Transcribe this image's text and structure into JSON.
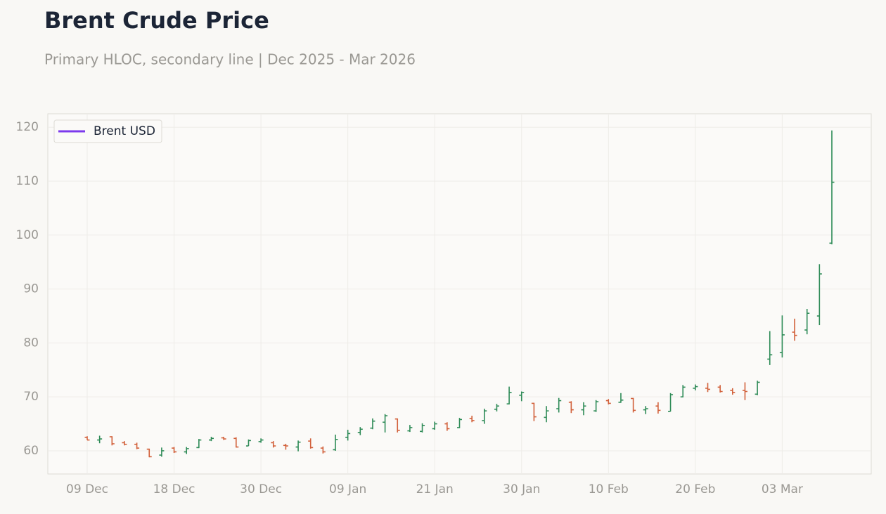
{
  "chart_data": {
    "type": "ohlc",
    "title": "Brent Crude Price",
    "subtitle": "Primary HLOC, secondary line | Dec 2025 - Mar 2026",
    "categories": [
      "09 Dec",
      null,
      null,
      null,
      null,
      null,
      null,
      "18 Dec",
      null,
      null,
      null,
      null,
      null,
      null,
      "30 Dec",
      null,
      null,
      null,
      null,
      null,
      null,
      "09 Jan",
      null,
      null,
      null,
      null,
      null,
      null,
      "21 Jan",
      null,
      null,
      null,
      null,
      null,
      null,
      "30 Jan",
      null,
      null,
      null,
      null,
      null,
      null,
      "10 Feb",
      null,
      null,
      null,
      null,
      null,
      null,
      "20 Feb",
      null,
      null,
      null,
      null,
      null,
      null,
      "03 Mar",
      null,
      null,
      null,
      null
    ],
    "series": [
      {
        "name": "Brent USD",
        "color": "#7c3aed",
        "up_color": "#2e8b57",
        "down_color": "#d2603a",
        "open": [
          62.5,
          62.0,
          62.6,
          61.5,
          61.2,
          60.3,
          59.2,
          60.5,
          59.8,
          60.6,
          62.0,
          62.4,
          62.3,
          60.9,
          61.7,
          61.5,
          61.0,
          60.7,
          61.8,
          60.5,
          60.2,
          62.5,
          63.4,
          64.2,
          65.3,
          65.9,
          63.7,
          63.6,
          64.1,
          65.0,
          64.3,
          66.0,
          65.6,
          67.7,
          68.7,
          70.3,
          68.8,
          66.2,
          67.8,
          69.0,
          67.6,
          67.4,
          69.3,
          69.0,
          69.7,
          67.6,
          68.3,
          67.3,
          70.0,
          71.6,
          71.6,
          71.8,
          71.2,
          71.2,
          70.5,
          77.0,
          78.2,
          82.0,
          82.4,
          85.0,
          98.5
        ],
        "high": [
          62.7,
          62.8,
          62.7,
          61.8,
          61.5,
          60.4,
          60.6,
          60.7,
          60.7,
          62.2,
          62.6,
          62.6,
          62.5,
          62.1,
          62.3,
          61.8,
          61.3,
          61.9,
          62.3,
          60.8,
          63.0,
          63.9,
          64.4,
          66.0,
          66.8,
          66.0,
          64.8,
          65.1,
          65.4,
          65.3,
          66.1,
          66.5,
          67.8,
          68.7,
          71.9,
          71.0,
          68.9,
          68.3,
          69.8,
          69.2,
          69.0,
          69.4,
          69.6,
          70.7,
          69.8,
          68.3,
          69.0,
          70.7,
          72.2,
          72.3,
          72.6,
          72.2,
          71.6,
          72.7,
          73.0,
          82.2,
          85.1,
          84.5,
          86.3,
          94.6,
          119.4
        ],
        "low": [
          62.0,
          61.4,
          61.0,
          61.0,
          60.3,
          58.8,
          58.9,
          59.6,
          59.4,
          60.5,
          61.8,
          62.0,
          60.6,
          60.9,
          61.5,
          60.6,
          60.2,
          59.9,
          60.4,
          59.5,
          60.0,
          61.9,
          62.9,
          64.0,
          63.4,
          63.4,
          63.5,
          63.4,
          63.9,
          63.7,
          64.2,
          65.3,
          65.0,
          67.3,
          68.6,
          69.2,
          65.5,
          65.3,
          67.1,
          67.0,
          66.6,
          67.2,
          68.6,
          68.9,
          67.1,
          66.8,
          66.9,
          67.3,
          69.9,
          71.2,
          70.9,
          70.8,
          70.4,
          69.4,
          70.3,
          75.9,
          77.3,
          80.4,
          81.6,
          83.3,
          98.3
        ],
        "close": [
          62.0,
          62.2,
          61.3,
          61.2,
          60.5,
          58.9,
          60.0,
          59.8,
          60.4,
          62.0,
          62.3,
          62.2,
          60.7,
          61.9,
          62.0,
          60.9,
          60.9,
          61.6,
          60.6,
          59.8,
          62.1,
          63.2,
          64.0,
          65.5,
          66.5,
          63.8,
          64.3,
          64.7,
          65.0,
          64.1,
          65.8,
          65.6,
          67.4,
          68.3,
          70.8,
          70.8,
          66.3,
          67.4,
          69.3,
          67.6,
          68.3,
          69.1,
          68.8,
          69.4,
          67.5,
          67.8,
          67.5,
          70.4,
          71.8,
          71.9,
          71.4,
          71.0,
          70.8,
          71.0,
          72.7,
          77.8,
          81.5,
          81.4,
          85.5,
          92.8,
          109.8
        ]
      }
    ],
    "ylim": [
      55.7,
      122.5
    ],
    "yticks": [
      60,
      70,
      80,
      90,
      100,
      110,
      120
    ],
    "grid": true,
    "legend": "upper left"
  }
}
